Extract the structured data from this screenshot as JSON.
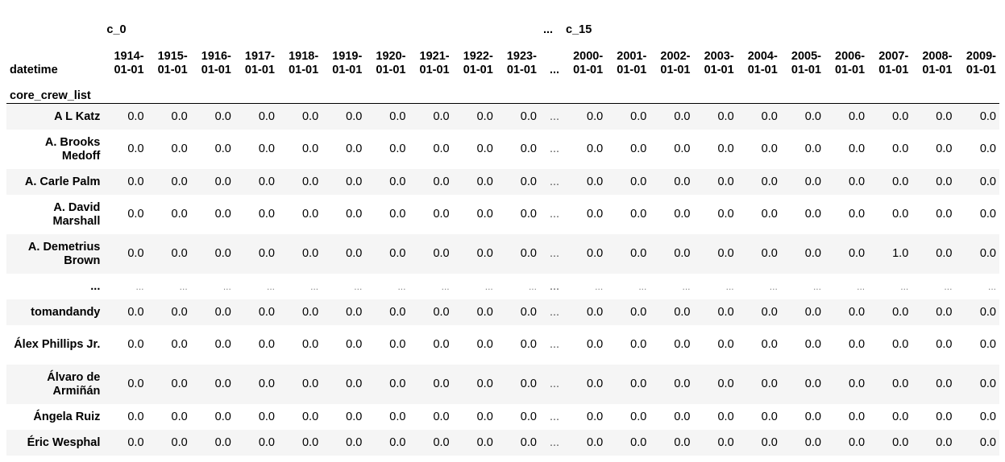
{
  "header": {
    "group_left": "c_0",
    "group_ellipsis": "...",
    "group_right": "c_15",
    "columns_index_name": "datetime",
    "row_index_name": "core_crew_list",
    "dates_left": [
      "1914-01-01",
      "1915-01-01",
      "1916-01-01",
      "1917-01-01",
      "1918-01-01",
      "1919-01-01",
      "1920-01-01",
      "1921-01-01",
      "1922-01-01",
      "1923-01-01"
    ],
    "dates_ellipsis": "...",
    "dates_right": [
      "2000-01-01",
      "2001-01-01",
      "2002-01-01",
      "2003-01-01",
      "2004-01-01",
      "2005-01-01",
      "2006-01-01",
      "2007-01-01",
      "2008-01-01",
      "2009-01-01"
    ]
  },
  "rows": [
    {
      "label": "A L Katz",
      "left": [
        "0.0",
        "0.0",
        "0.0",
        "0.0",
        "0.0",
        "0.0",
        "0.0",
        "0.0",
        "0.0",
        "0.0"
      ],
      "mid": "...",
      "right": [
        "0.0",
        "0.0",
        "0.0",
        "0.0",
        "0.0",
        "0.0",
        "0.0",
        "0.0",
        "0.0",
        "0.0"
      ]
    },
    {
      "label": "A. Brooks Medoff",
      "left": [
        "0.0",
        "0.0",
        "0.0",
        "0.0",
        "0.0",
        "0.0",
        "0.0",
        "0.0",
        "0.0",
        "0.0"
      ],
      "mid": "...",
      "right": [
        "0.0",
        "0.0",
        "0.0",
        "0.0",
        "0.0",
        "0.0",
        "0.0",
        "0.0",
        "0.0",
        "0.0"
      ]
    },
    {
      "label": "A. Carle Palm",
      "left": [
        "0.0",
        "0.0",
        "0.0",
        "0.0",
        "0.0",
        "0.0",
        "0.0",
        "0.0",
        "0.0",
        "0.0"
      ],
      "mid": "...",
      "right": [
        "0.0",
        "0.0",
        "0.0",
        "0.0",
        "0.0",
        "0.0",
        "0.0",
        "0.0",
        "0.0",
        "0.0"
      ]
    },
    {
      "label": "A. David Marshall",
      "left": [
        "0.0",
        "0.0",
        "0.0",
        "0.0",
        "0.0",
        "0.0",
        "0.0",
        "0.0",
        "0.0",
        "0.0"
      ],
      "mid": "...",
      "right": [
        "0.0",
        "0.0",
        "0.0",
        "0.0",
        "0.0",
        "0.0",
        "0.0",
        "0.0",
        "0.0",
        "0.0"
      ]
    },
    {
      "label": "A. Demetrius Brown",
      "left": [
        "0.0",
        "0.0",
        "0.0",
        "0.0",
        "0.0",
        "0.0",
        "0.0",
        "0.0",
        "0.0",
        "0.0"
      ],
      "mid": "...",
      "right": [
        "0.0",
        "0.0",
        "0.0",
        "0.0",
        "0.0",
        "0.0",
        "0.0",
        "1.0",
        "0.0",
        "0.0"
      ]
    },
    {
      "label": "...",
      "left": [
        "...",
        "...",
        "...",
        "...",
        "...",
        "...",
        "...",
        "...",
        "...",
        "..."
      ],
      "mid": "...",
      "right": [
        "...",
        "...",
        "...",
        "...",
        "...",
        "...",
        "...",
        "...",
        "...",
        "..."
      ]
    },
    {
      "label": "tomandandy",
      "left": [
        "0.0",
        "0.0",
        "0.0",
        "0.0",
        "0.0",
        "0.0",
        "0.0",
        "0.0",
        "0.0",
        "0.0"
      ],
      "mid": "...",
      "right": [
        "0.0",
        "0.0",
        "0.0",
        "0.0",
        "0.0",
        "0.0",
        "0.0",
        "0.0",
        "0.0",
        "0.0"
      ]
    },
    {
      "label": "Álex Phillips Jr.",
      "left": [
        "0.0",
        "0.0",
        "0.0",
        "0.0",
        "0.0",
        "0.0",
        "0.0",
        "0.0",
        "0.0",
        "0.0"
      ],
      "mid": "...",
      "right": [
        "0.0",
        "0.0",
        "0.0",
        "0.0",
        "0.0",
        "0.0",
        "0.0",
        "0.0",
        "0.0",
        "0.0"
      ]
    },
    {
      "label": "Álvaro de Armiñán",
      "left": [
        "0.0",
        "0.0",
        "0.0",
        "0.0",
        "0.0",
        "0.0",
        "0.0",
        "0.0",
        "0.0",
        "0.0"
      ],
      "mid": "...",
      "right": [
        "0.0",
        "0.0",
        "0.0",
        "0.0",
        "0.0",
        "0.0",
        "0.0",
        "0.0",
        "0.0",
        "0.0"
      ]
    },
    {
      "label": "Ángela Ruiz",
      "left": [
        "0.0",
        "0.0",
        "0.0",
        "0.0",
        "0.0",
        "0.0",
        "0.0",
        "0.0",
        "0.0",
        "0.0"
      ],
      "mid": "...",
      "right": [
        "0.0",
        "0.0",
        "0.0",
        "0.0",
        "0.0",
        "0.0",
        "0.0",
        "0.0",
        "0.0",
        "0.0"
      ]
    },
    {
      "label": "Éric Wesphal",
      "left": [
        "0.0",
        "0.0",
        "0.0",
        "0.0",
        "0.0",
        "0.0",
        "0.0",
        "0.0",
        "0.0",
        "0.0"
      ],
      "mid": "...",
      "right": [
        "0.0",
        "0.0",
        "0.0",
        "0.0",
        "0.0",
        "0.0",
        "0.0",
        "0.0",
        "0.0",
        "0.0"
      ]
    }
  ]
}
